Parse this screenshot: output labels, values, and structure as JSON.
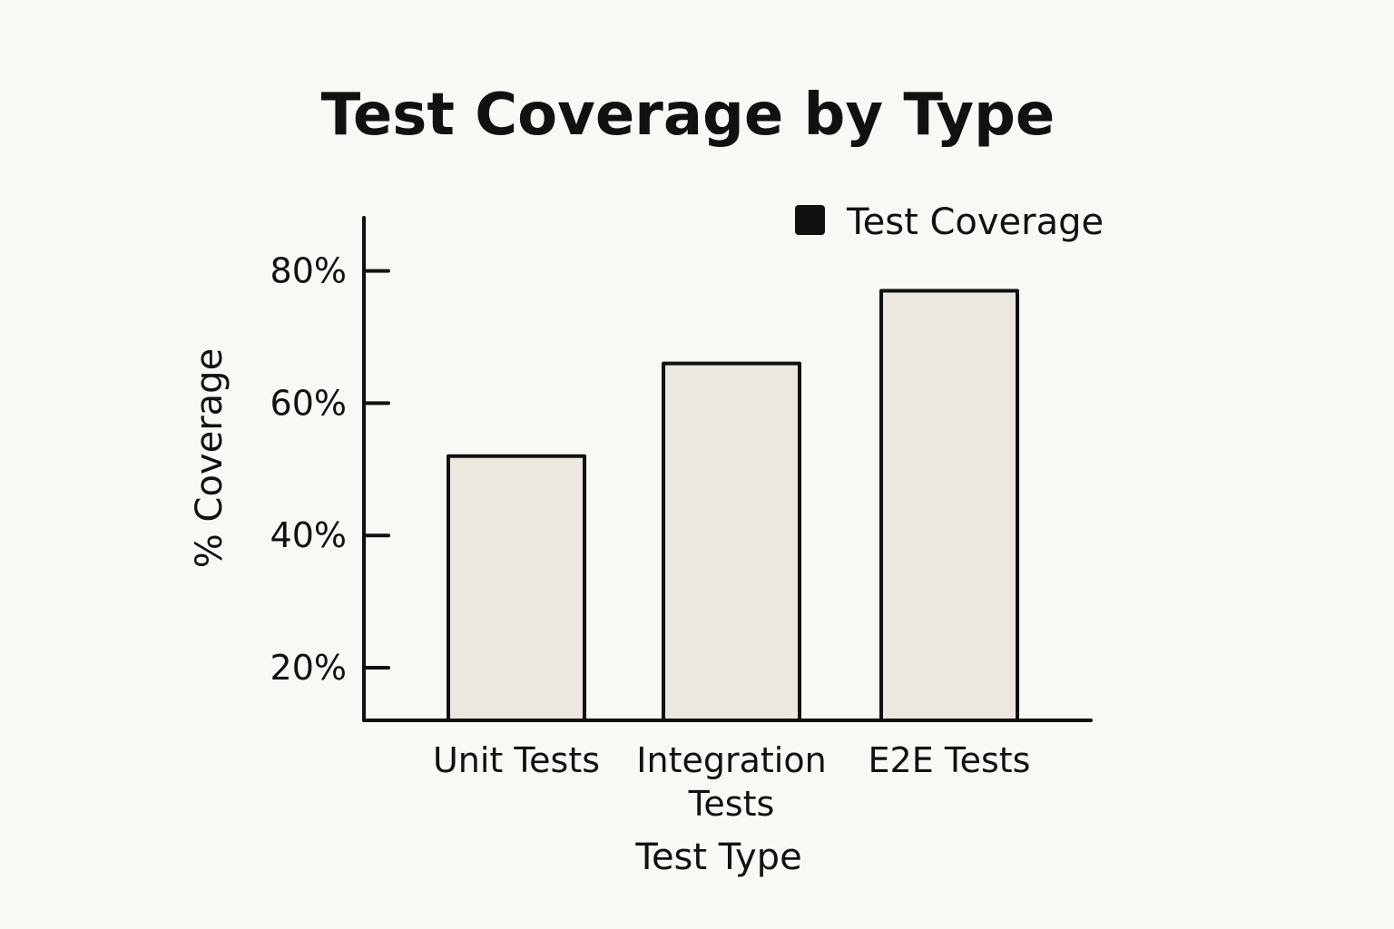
{
  "chart_data": {
    "type": "bar",
    "title": "Test Coverage by Type",
    "xlabel": "Test Type",
    "ylabel": "% Coverage",
    "categories": [
      [
        "Unit Tests"
      ],
      [
        "Integration",
        "Tests"
      ],
      [
        "E2E Tests"
      ]
    ],
    "series": [
      {
        "name": "Test Coverage",
        "values": [
          52,
          66,
          77
        ]
      }
    ],
    "yticks": [
      20,
      40,
      60,
      80
    ],
    "ytick_labels": [
      "20%",
      "40%",
      "60%",
      "80%"
    ],
    "ylim": [
      12,
      88
    ],
    "grid": false,
    "legend": {
      "position": "top-right",
      "label": "Test Coverage",
      "swatch_color": "#111111"
    },
    "colors": {
      "bar_fill": "#ece7df",
      "bar_stroke": "#111111",
      "background": "#faf8f4"
    }
  }
}
